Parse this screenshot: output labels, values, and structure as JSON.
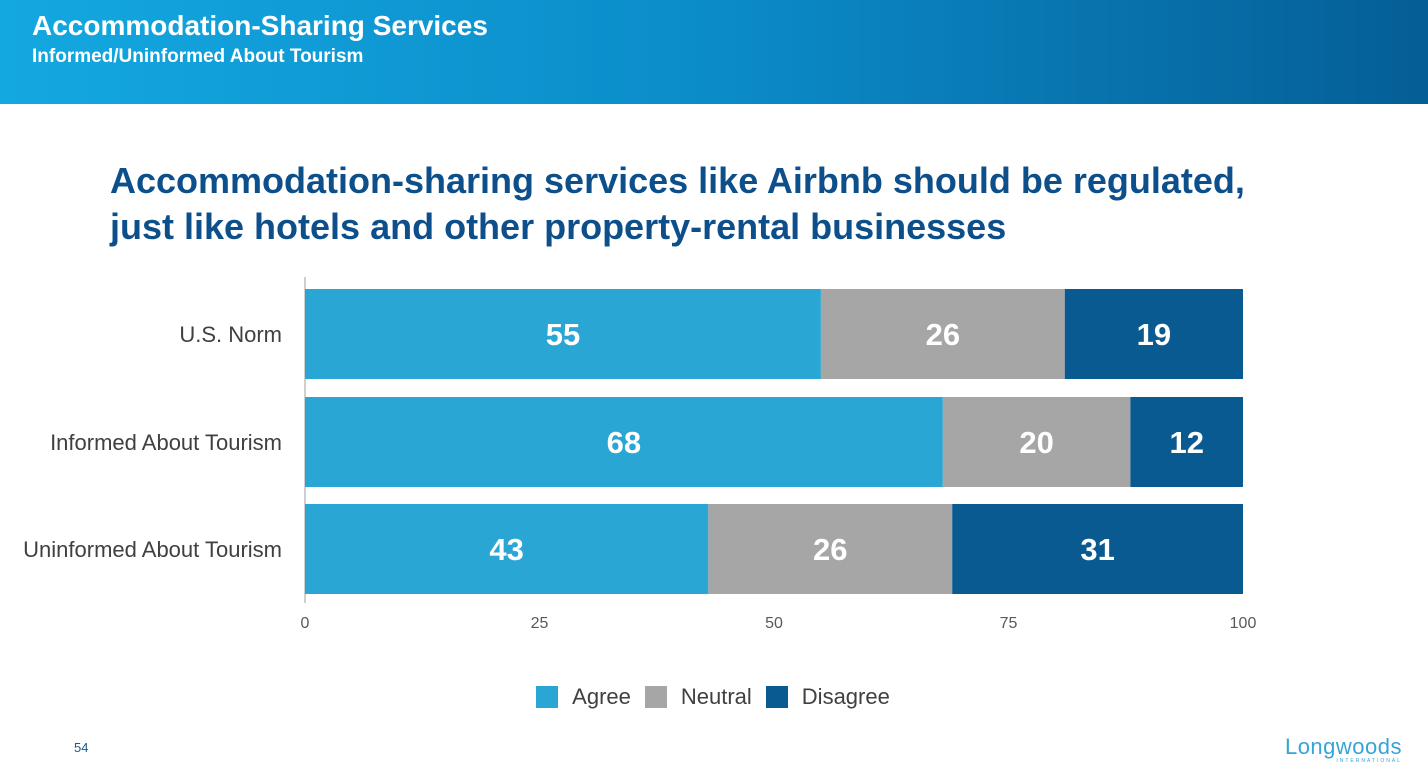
{
  "header": {
    "title": "Accommodation-Sharing Services",
    "subtitle": "Informed/Uninformed About Tourism"
  },
  "headline_line1": "Accommodation-sharing services like Airbnb should be regulated,",
  "headline_line2": "just like hotels and other property-rental businesses",
  "chart_data": {
    "type": "bar",
    "orientation": "horizontal",
    "stacked": true,
    "categories": [
      "U.S. Norm",
      "Informed About Tourism",
      "Uninformed About Tourism"
    ],
    "series": [
      {
        "name": "Agree",
        "values": [
          55,
          68,
          43
        ],
        "color": "#2aa6d4"
      },
      {
        "name": "Neutral",
        "values": [
          26,
          20,
          26
        ],
        "color": "#a6a6a6"
      },
      {
        "name": "Disagree",
        "values": [
          19,
          12,
          31
        ],
        "color": "#0a5a92"
      }
    ],
    "xlim": [
      0,
      100
    ],
    "xticks": [
      "0",
      "25",
      "50",
      "75",
      "100"
    ],
    "grid": false,
    "legend_position": "bottom"
  },
  "legend": [
    {
      "label": "Agree",
      "color": "#2aa6d4"
    },
    {
      "label": "Neutral",
      "color": "#a6a6a6"
    },
    {
      "label": "Disagree",
      "color": "#0a5a92"
    }
  ],
  "footer": {
    "page_number": "54",
    "logo_word": "Longwoods",
    "logo_tagline": "INTERNATIONAL"
  }
}
